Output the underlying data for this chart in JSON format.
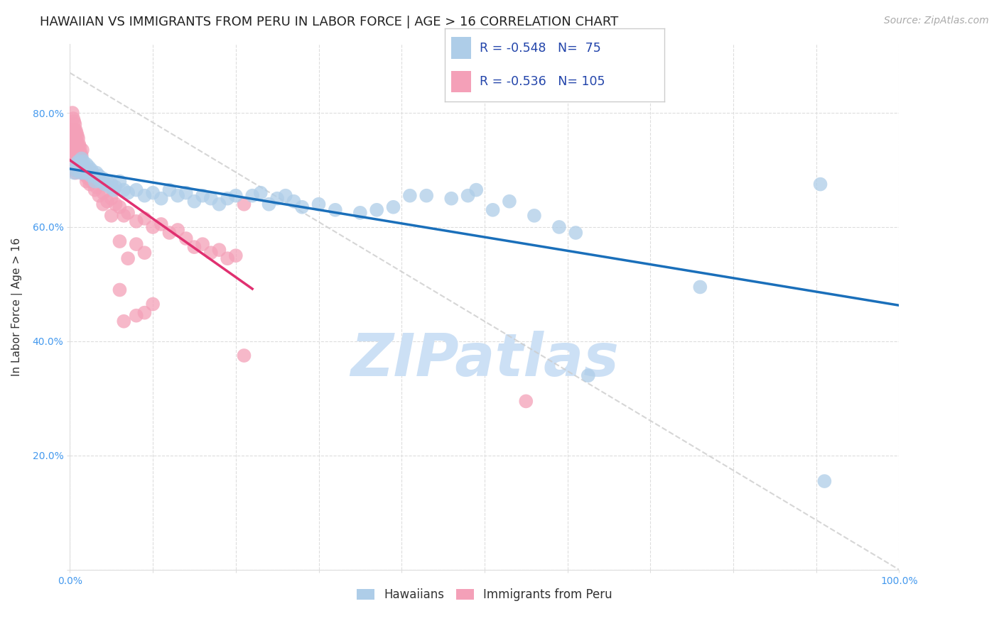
{
  "title": "HAWAIIAN VS IMMIGRANTS FROM PERU IN LABOR FORCE | AGE > 16 CORRELATION CHART",
  "source": "Source: ZipAtlas.com",
  "ylabel": "In Labor Force | Age > 16",
  "xlim": [
    0.0,
    1.0
  ],
  "ylim": [
    0.0,
    0.92
  ],
  "blue_R": -0.548,
  "blue_N": 75,
  "pink_R": -0.536,
  "pink_N": 105,
  "blue_color": "#aecde8",
  "pink_color": "#f4a0b8",
  "blue_line_color": "#1a6fba",
  "pink_line_color": "#e03070",
  "diagonal_color": "#cccccc",
  "watermark": "ZIPatlas",
  "watermark_color": "#cce0f5",
  "legend_label_blue": "Hawaiians",
  "legend_label_pink": "Immigrants from Peru",
  "blue_scatter": [
    [
      0.005,
      0.695
    ],
    [
      0.007,
      0.7
    ],
    [
      0.008,
      0.71
    ],
    [
      0.009,
      0.705
    ],
    [
      0.01,
      0.715
    ],
    [
      0.01,
      0.705
    ],
    [
      0.011,
      0.7
    ],
    [
      0.012,
      0.71
    ],
    [
      0.013,
      0.695
    ],
    [
      0.014,
      0.72
    ],
    [
      0.015,
      0.7
    ],
    [
      0.016,
      0.715
    ],
    [
      0.017,
      0.695
    ],
    [
      0.018,
      0.705
    ],
    [
      0.019,
      0.7
    ],
    [
      0.02,
      0.71
    ],
    [
      0.021,
      0.695
    ],
    [
      0.022,
      0.7
    ],
    [
      0.023,
      0.705
    ],
    [
      0.025,
      0.69
    ],
    [
      0.026,
      0.7
    ],
    [
      0.027,
      0.695
    ],
    [
      0.03,
      0.68
    ],
    [
      0.032,
      0.695
    ],
    [
      0.033,
      0.685
    ],
    [
      0.035,
      0.69
    ],
    [
      0.037,
      0.68
    ],
    [
      0.04,
      0.685
    ],
    [
      0.042,
      0.675
    ],
    [
      0.045,
      0.68
    ],
    [
      0.048,
      0.67
    ],
    [
      0.05,
      0.675
    ],
    [
      0.053,
      0.665
    ],
    [
      0.055,
      0.67
    ],
    [
      0.06,
      0.68
    ],
    [
      0.065,
      0.665
    ],
    [
      0.07,
      0.66
    ],
    [
      0.08,
      0.665
    ],
    [
      0.09,
      0.655
    ],
    [
      0.1,
      0.66
    ],
    [
      0.11,
      0.65
    ],
    [
      0.12,
      0.665
    ],
    [
      0.13,
      0.655
    ],
    [
      0.14,
      0.66
    ],
    [
      0.15,
      0.645
    ],
    [
      0.16,
      0.655
    ],
    [
      0.17,
      0.65
    ],
    [
      0.18,
      0.64
    ],
    [
      0.19,
      0.65
    ],
    [
      0.2,
      0.655
    ],
    [
      0.22,
      0.655
    ],
    [
      0.23,
      0.66
    ],
    [
      0.24,
      0.64
    ],
    [
      0.25,
      0.65
    ],
    [
      0.26,
      0.655
    ],
    [
      0.27,
      0.645
    ],
    [
      0.28,
      0.635
    ],
    [
      0.3,
      0.64
    ],
    [
      0.32,
      0.63
    ],
    [
      0.35,
      0.625
    ],
    [
      0.37,
      0.63
    ],
    [
      0.39,
      0.635
    ],
    [
      0.41,
      0.655
    ],
    [
      0.43,
      0.655
    ],
    [
      0.46,
      0.65
    ],
    [
      0.48,
      0.655
    ],
    [
      0.49,
      0.665
    ],
    [
      0.51,
      0.63
    ],
    [
      0.53,
      0.645
    ],
    [
      0.56,
      0.62
    ],
    [
      0.59,
      0.6
    ],
    [
      0.61,
      0.59
    ],
    [
      0.625,
      0.34
    ],
    [
      0.76,
      0.495
    ],
    [
      0.905,
      0.675
    ],
    [
      0.91,
      0.155
    ]
  ],
  "pink_scatter": [
    [
      0.003,
      0.8
    ],
    [
      0.003,
      0.76
    ],
    [
      0.004,
      0.79
    ],
    [
      0.004,
      0.75
    ],
    [
      0.004,
      0.73
    ],
    [
      0.005,
      0.785
    ],
    [
      0.005,
      0.77
    ],
    [
      0.005,
      0.755
    ],
    [
      0.005,
      0.74
    ],
    [
      0.005,
      0.725
    ],
    [
      0.005,
      0.71
    ],
    [
      0.006,
      0.78
    ],
    [
      0.006,
      0.76
    ],
    [
      0.006,
      0.745
    ],
    [
      0.006,
      0.73
    ],
    [
      0.006,
      0.715
    ],
    [
      0.006,
      0.7
    ],
    [
      0.007,
      0.77
    ],
    [
      0.007,
      0.755
    ],
    [
      0.007,
      0.74
    ],
    [
      0.007,
      0.725
    ],
    [
      0.007,
      0.71
    ],
    [
      0.007,
      0.695
    ],
    [
      0.008,
      0.765
    ],
    [
      0.008,
      0.75
    ],
    [
      0.008,
      0.735
    ],
    [
      0.008,
      0.72
    ],
    [
      0.009,
      0.76
    ],
    [
      0.009,
      0.745
    ],
    [
      0.009,
      0.73
    ],
    [
      0.009,
      0.715
    ],
    [
      0.009,
      0.7
    ],
    [
      0.01,
      0.755
    ],
    [
      0.01,
      0.74
    ],
    [
      0.01,
      0.725
    ],
    [
      0.01,
      0.71
    ],
    [
      0.011,
      0.745
    ],
    [
      0.011,
      0.73
    ],
    [
      0.012,
      0.74
    ],
    [
      0.012,
      0.72
    ],
    [
      0.013,
      0.73
    ],
    [
      0.013,
      0.715
    ],
    [
      0.014,
      0.725
    ],
    [
      0.014,
      0.71
    ],
    [
      0.015,
      0.735
    ],
    [
      0.015,
      0.7
    ],
    [
      0.016,
      0.695
    ],
    [
      0.017,
      0.705
    ],
    [
      0.018,
      0.7
    ],
    [
      0.019,
      0.69
    ],
    [
      0.02,
      0.68
    ],
    [
      0.022,
      0.685
    ],
    [
      0.024,
      0.675
    ],
    [
      0.026,
      0.68
    ],
    [
      0.03,
      0.665
    ],
    [
      0.032,
      0.67
    ],
    [
      0.035,
      0.655
    ],
    [
      0.04,
      0.66
    ],
    [
      0.045,
      0.645
    ],
    [
      0.05,
      0.65
    ],
    [
      0.055,
      0.64
    ],
    [
      0.06,
      0.635
    ],
    [
      0.065,
      0.62
    ],
    [
      0.07,
      0.625
    ],
    [
      0.08,
      0.61
    ],
    [
      0.09,
      0.615
    ],
    [
      0.1,
      0.6
    ],
    [
      0.11,
      0.605
    ],
    [
      0.12,
      0.59
    ],
    [
      0.13,
      0.595
    ],
    [
      0.14,
      0.58
    ],
    [
      0.15,
      0.565
    ],
    [
      0.16,
      0.57
    ],
    [
      0.17,
      0.555
    ],
    [
      0.18,
      0.56
    ],
    [
      0.19,
      0.545
    ],
    [
      0.2,
      0.55
    ],
    [
      0.04,
      0.64
    ],
    [
      0.05,
      0.62
    ],
    [
      0.06,
      0.575
    ],
    [
      0.07,
      0.545
    ],
    [
      0.08,
      0.57
    ],
    [
      0.09,
      0.555
    ],
    [
      0.06,
      0.49
    ],
    [
      0.065,
      0.435
    ],
    [
      0.08,
      0.445
    ],
    [
      0.09,
      0.45
    ],
    [
      0.1,
      0.465
    ],
    [
      0.21,
      0.375
    ],
    [
      0.21,
      0.64
    ],
    [
      0.55,
      0.295
    ]
  ],
  "background_color": "#ffffff",
  "grid_color": "#dddddd",
  "title_fontsize": 13,
  "axis_label_fontsize": 11,
  "tick_color": "#4499ee",
  "tick_fontsize": 10,
  "source_fontsize": 10,
  "legend_box_color": "#f0f4ff",
  "legend_text_color": "#2244aa"
}
